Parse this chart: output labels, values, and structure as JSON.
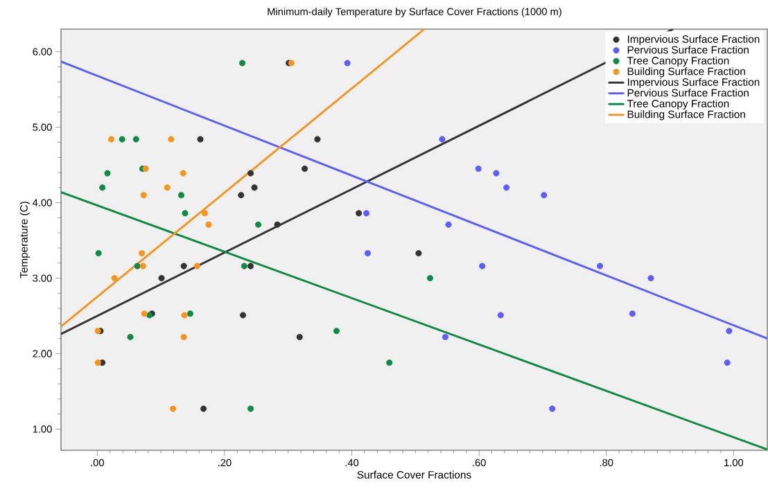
{
  "chart_data": {
    "type": "scatter",
    "title": "Minimum-daily Temperature by Surface Cover Fractions (1000 m)",
    "xlabel": "Surface Cover Fractions",
    "ylabel": "Temperature (C)",
    "xlim": [
      -0.057,
      1.053
    ],
    "ylim": [
      0.72,
      6.3
    ],
    "xticks": [
      {
        "value": 0,
        "label": ".00"
      },
      {
        "value": 0.2,
        "label": ".20"
      },
      {
        "value": 0.4,
        "label": ".40"
      },
      {
        "value": 0.6,
        "label": ".60"
      },
      {
        "value": 0.8,
        "label": ".80"
      },
      {
        "value": 1,
        "label": "1.00"
      }
    ],
    "yticks": [
      {
        "value": 1,
        "label": "1.00"
      },
      {
        "value": 2,
        "label": "2.00"
      },
      {
        "value": 3,
        "label": "3.00"
      },
      {
        "value": 4,
        "label": "4.00"
      },
      {
        "value": 5,
        "label": "5.00"
      },
      {
        "value": 6,
        "label": "6.00"
      }
    ],
    "legend": "top right",
    "marker": "circle",
    "series": [
      {
        "name": "Impervious Surface Fraction",
        "color": "#333333",
        "x": [
          0.301,
          0.162,
          0.346,
          0.326,
          0.241,
          0.247,
          0.226,
          0.411,
          0.283,
          0.505,
          0.136,
          0.241,
          0.101,
          0.086,
          0.229,
          0.005,
          0.318,
          0.008,
          0.167
        ],
        "values": [
          5.85,
          4.84,
          4.84,
          4.45,
          4.39,
          4.2,
          4.1,
          3.86,
          3.71,
          3.33,
          3.16,
          3.16,
          3.0,
          2.53,
          2.51,
          2.3,
          2.22,
          1.88,
          1.27
        ]
      },
      {
        "name": "Pervious Surface Fraction",
        "color": "#5c5cff",
        "x": [
          0.393,
          0.542,
          0.599,
          0.627,
          0.643,
          0.702,
          0.423,
          0.552,
          0.425,
          0.605,
          0.79,
          0.87,
          0.841,
          0.634,
          0.993,
          0.547,
          0.99,
          0.715
        ],
        "values": [
          5.85,
          4.84,
          4.45,
          4.39,
          4.2,
          4.1,
          3.86,
          3.71,
          3.33,
          3.16,
          3.16,
          3.0,
          2.53,
          2.51,
          2.3,
          2.22,
          1.88,
          1.27
        ]
      },
      {
        "name": "Tree Canopy Fraction",
        "color": "#0f8a46",
        "x": [
          0.228,
          0.039,
          0.061,
          0.071,
          0.016,
          0.008,
          0.132,
          0.138,
          0.253,
          0.002,
          0.063,
          0.231,
          0.523,
          0.146,
          0.082,
          0.376,
          0.052,
          0.459,
          0.241
        ],
        "values": [
          5.85,
          4.84,
          4.84,
          4.45,
          4.39,
          4.2,
          4.1,
          3.86,
          3.71,
          3.33,
          3.16,
          3.16,
          3.0,
          2.53,
          2.51,
          2.3,
          2.22,
          1.88,
          1.27
        ]
      },
      {
        "name": "Building Surface Fraction",
        "color": "#f7941d",
        "x": [
          0.305,
          0.022,
          0.116,
          0.076,
          0.135,
          0.11,
          0.073,
          0.169,
          0.175,
          0.07,
          0.072,
          0.157,
          0.027,
          0.074,
          0.137,
          0.001,
          0.136,
          0.001,
          0.119
        ],
        "values": [
          5.85,
          4.84,
          4.84,
          4.45,
          4.39,
          4.2,
          4.1,
          3.86,
          3.71,
          3.33,
          3.16,
          3.16,
          3.0,
          2.53,
          2.51,
          2.3,
          2.22,
          1.88,
          1.27
        ]
      },
      {
        "name": "Impervious Surface Fraction",
        "type": "line",
        "marker": "none",
        "color": "#333333",
        "x": [
          -0.057,
          0.905
        ],
        "values": [
          2.26,
          6.3
        ]
      },
      {
        "name": "Pervious Surface Fraction",
        "type": "line",
        "marker": "none",
        "color": "#5c5cff",
        "x": [
          -0.057,
          1.053
        ],
        "values": [
          5.87,
          2.2
        ]
      },
      {
        "name": "Tree Canopy Fraction",
        "type": "line",
        "marker": "none",
        "color": "#0f8a46",
        "x": [
          -0.057,
          1.053
        ],
        "values": [
          4.14,
          0.73
        ]
      },
      {
        "name": "Building Surface Fraction",
        "type": "line",
        "marker": "none",
        "color": "#f7941d",
        "x": [
          -0.057,
          0.514
        ],
        "values": [
          2.36,
          6.3
        ]
      }
    ]
  }
}
